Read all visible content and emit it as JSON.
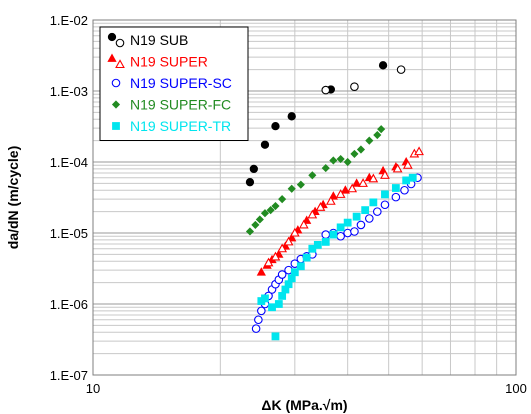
{
  "chart_data": {
    "type": "scatter",
    "xscale": "log",
    "yscale": "log",
    "xlim": [
      10,
      100
    ],
    "ylim": [
      1e-07,
      0.01
    ],
    "xlabel": "ΔK (MPa.√m)",
    "ylabel": "da/dN (m/cycle)",
    "xticks": [
      {
        "v": 10,
        "label": "10"
      },
      {
        "v": 100,
        "label": "100"
      }
    ],
    "yticks": [
      {
        "v": 1e-07,
        "label": "1.E-07"
      },
      {
        "v": 1e-06,
        "label": "1.E-06"
      },
      {
        "v": 1e-05,
        "label": "1.E-05"
      },
      {
        "v": 0.0001,
        "label": "1.E-04"
      },
      {
        "v": 0.001,
        "label": "1.E-03"
      },
      {
        "v": 0.01,
        "label": "1.E-02"
      }
    ],
    "grid": true,
    "legend": {
      "placement": "top-left"
    },
    "series": [
      {
        "name": "N19 SUB",
        "color": "#000000",
        "subsets": [
          {
            "marker": "circle",
            "filled": true,
            "points": [
              [
                23.5,
                5.2e-05
              ],
              [
                24,
                8e-05
              ],
              [
                25.5,
                0.000175
              ],
              [
                27,
                0.00032
              ],
              [
                29.5,
                0.00044
              ],
              [
                36.5,
                0.00105
              ],
              [
                48.5,
                0.0023
              ]
            ]
          },
          {
            "marker": "circle",
            "filled": false,
            "points": [
              [
                35.5,
                0.00103
              ],
              [
                41.5,
                0.00115
              ],
              [
                53.5,
                0.002
              ]
            ]
          }
        ]
      },
      {
        "name": "N19 SUPER",
        "color": "#ff0000",
        "subsets": [
          {
            "marker": "triangle",
            "filled": true,
            "points": [
              [
                25,
                2.8e-06
              ],
              [
                25.8,
                3.5e-06
              ],
              [
                26.5,
                4.2e-06
              ],
              [
                27.5,
                5e-06
              ],
              [
                28.5,
                6.5e-06
              ],
              [
                29.5,
                8.5e-06
              ],
              [
                30.5,
                1.1e-05
              ],
              [
                32,
                1.5e-05
              ],
              [
                33.5,
                2e-05
              ],
              [
                35,
                2.5e-05
              ],
              [
                37,
                3.3e-05
              ],
              [
                39.5,
                4e-05
              ],
              [
                42,
                5e-05
              ],
              [
                45,
                6e-05
              ],
              [
                48.5,
                7.5e-05
              ],
              [
                52,
                8.5e-05
              ],
              [
                55,
                0.0001
              ]
            ]
          },
          {
            "marker": "triangle",
            "filled": false,
            "points": [
              [
                26,
                3.8e-06
              ],
              [
                27,
                4.6e-06
              ],
              [
                28,
                6e-06
              ],
              [
                29,
                7.5e-06
              ],
              [
                30,
                1e-05
              ],
              [
                31.5,
                1.3e-05
              ],
              [
                33,
                1.8e-05
              ],
              [
                34.5,
                2.3e-05
              ],
              [
                36.5,
                2.8e-05
              ],
              [
                38.5,
                3.5e-05
              ],
              [
                41,
                4.2e-05
              ],
              [
                43.5,
                5e-05
              ],
              [
                46,
                5.8e-05
              ],
              [
                49,
                6.5e-05
              ],
              [
                52.5,
                8e-05
              ],
              [
                55.5,
                9e-05
              ],
              [
                57.5,
                0.00013
              ],
              [
                59,
                0.00014
              ]
            ]
          }
        ]
      },
      {
        "name": "N19 SUPER-SC",
        "color": "#0000ff",
        "subsets": [
          {
            "marker": "circle",
            "filled": false,
            "points": [
              [
                24.3,
                4.5e-07
              ],
              [
                24.6,
                6e-07
              ],
              [
                25,
                8e-07
              ],
              [
                25.5,
                1e-06
              ],
              [
                26,
                1.3e-06
              ],
              [
                26.5,
                1.6e-06
              ],
              [
                27,
                1.9e-06
              ],
              [
                27.5,
                2.2e-06
              ],
              [
                28,
                2.6e-06
              ],
              [
                29,
                3e-06
              ],
              [
                30,
                3.7e-06
              ],
              [
                31,
                4.3e-06
              ],
              [
                32,
                4.7e-06
              ],
              [
                33,
                5e-06
              ],
              [
                35.5,
                9.5e-06
              ],
              [
                37,
                1e-05
              ],
              [
                38.5,
                9e-06
              ],
              [
                40,
                1e-05
              ],
              [
                41.5,
                1.05e-05
              ],
              [
                43,
                1.3e-05
              ],
              [
                45,
                1.6e-05
              ],
              [
                47,
                2e-05
              ],
              [
                49,
                2.5e-05
              ],
              [
                52,
                3.2e-05
              ],
              [
                54.5,
                4e-05
              ],
              [
                56.5,
                4.9e-05
              ],
              [
                58.5,
                6e-05
              ]
            ]
          }
        ]
      },
      {
        "name": "N19 SUPER-FC",
        "color": "#228b22",
        "subsets": [
          {
            "marker": "diamond",
            "filled": true,
            "points": [
              [
                23.5,
                1.05e-05
              ],
              [
                24.2,
                1.3e-05
              ],
              [
                24.8,
                1.55e-05
              ],
              [
                25.5,
                1.9e-05
              ],
              [
                26.3,
                2.1e-05
              ],
              [
                27,
                2.4e-05
              ],
              [
                28,
                3e-05
              ],
              [
                29.5,
                4.2e-05
              ],
              [
                31,
                4.8e-05
              ],
              [
                33,
                6.5e-05
              ],
              [
                35.5,
                8.2e-05
              ],
              [
                37,
                0.000105
              ],
              [
                38.5,
                0.00011
              ],
              [
                40,
                0.0001
              ],
              [
                41.5,
                0.00013
              ],
              [
                43,
                0.00015
              ],
              [
                45,
                0.0002
              ],
              [
                47,
                0.00024
              ],
              [
                48,
                0.00029
              ]
            ]
          }
        ]
      },
      {
        "name": "N19 SUPER-TR",
        "color": "#00e5ee",
        "subsets": [
          {
            "marker": "square",
            "filled": true,
            "points": [
              [
                25,
                1.1e-06
              ],
              [
                25.5,
                1.2e-06
              ],
              [
                26.5,
                9e-07
              ],
              [
                27,
                3.5e-07
              ],
              [
                27.5,
                1e-06
              ],
              [
                28,
                1.3e-06
              ],
              [
                28.5,
                1.6e-06
              ],
              [
                29,
                1.9e-06
              ],
              [
                29.5,
                2.3e-06
              ],
              [
                30,
                2.8e-06
              ],
              [
                31,
                3.4e-06
              ],
              [
                32,
                4.5e-06
              ],
              [
                33,
                6e-06
              ],
              [
                34,
                6.8e-06
              ],
              [
                35.5,
                7.5e-06
              ],
              [
                37,
                9.5e-06
              ],
              [
                38.5,
                1.2e-05
              ],
              [
                40,
                1.4e-05
              ],
              [
                42,
                1.7e-05
              ],
              [
                44,
                2.1e-05
              ],
              [
                46,
                2.7e-05
              ],
              [
                49,
                3.5e-05
              ],
              [
                52,
                4.3e-05
              ],
              [
                55,
                5.5e-05
              ],
              [
                57,
                6e-05
              ]
            ]
          }
        ]
      }
    ]
  }
}
